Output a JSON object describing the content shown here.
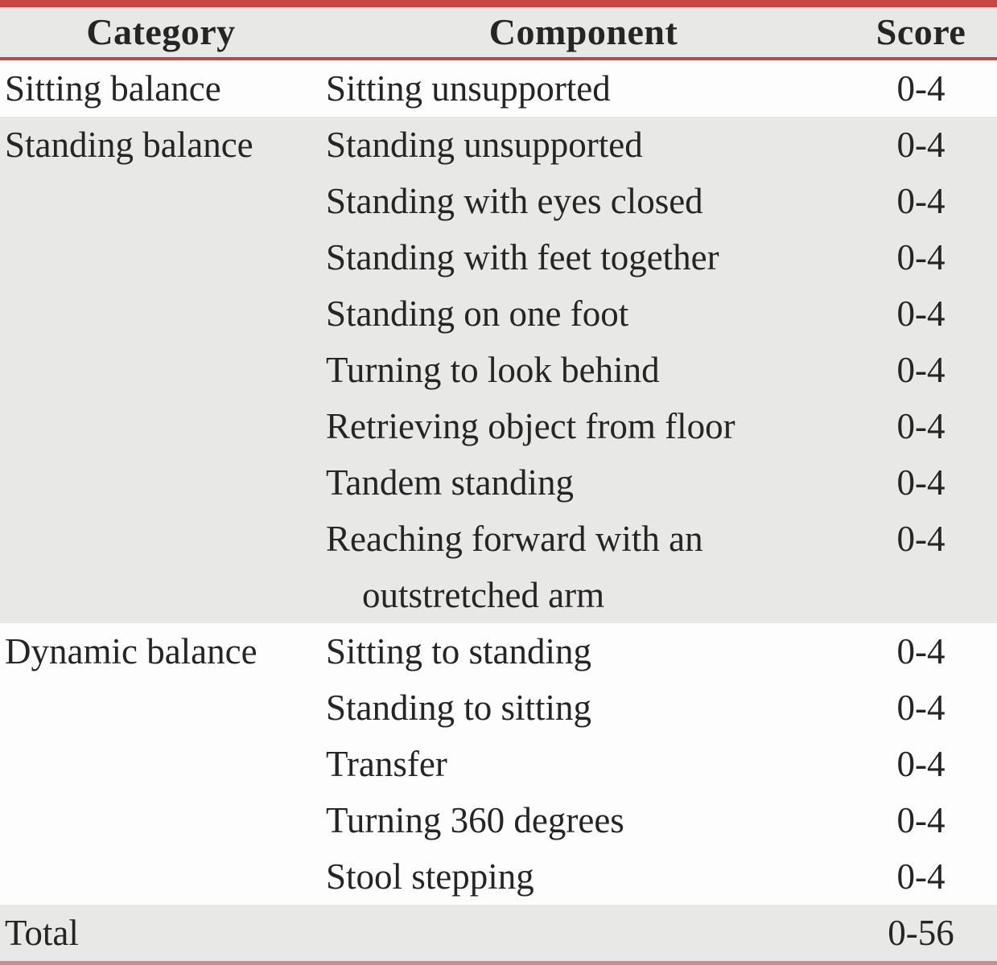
{
  "table": {
    "columns": [
      "Category",
      "Component",
      "Score"
    ],
    "sections": [
      {
        "category": "Sitting balance",
        "rows": [
          {
            "component": "Sitting unsupported",
            "score": "0-4"
          }
        ]
      },
      {
        "category": "Standing balance",
        "rows": [
          {
            "component": "Standing unsupported",
            "score": "0-4"
          },
          {
            "component": "Standing with eyes closed",
            "score": "0-4"
          },
          {
            "component": "Standing with feet together",
            "score": "0-4"
          },
          {
            "component": "Standing on one foot",
            "score": "0-4"
          },
          {
            "component": "Turning to look behind",
            "score": "0-4"
          },
          {
            "component": "Retrieving object from floor",
            "score": "0-4"
          },
          {
            "component": "Tandem standing",
            "score": "0-4"
          },
          {
            "component": "Reaching forward with an outstretched arm",
            "score": "0-4"
          }
        ]
      },
      {
        "category": "Dynamic balance",
        "rows": [
          {
            "component": "Sitting to standing",
            "score": "0-4"
          },
          {
            "component": "Standing to sitting",
            "score": "0-4"
          },
          {
            "component": "Transfer",
            "score": "0-4"
          },
          {
            "component": "Turning 360 degrees",
            "score": "0-4"
          },
          {
            "component": "Stool stepping",
            "score": "0-4"
          }
        ]
      }
    ],
    "total": {
      "label": "Total",
      "score": "0-56"
    }
  },
  "colors": {
    "top_border": "#c84743",
    "header_rule": "#c04548",
    "bottom_rule": "#cc8b8d",
    "shaded_row_bg": "#e8e8e7",
    "text": "#262424"
  }
}
